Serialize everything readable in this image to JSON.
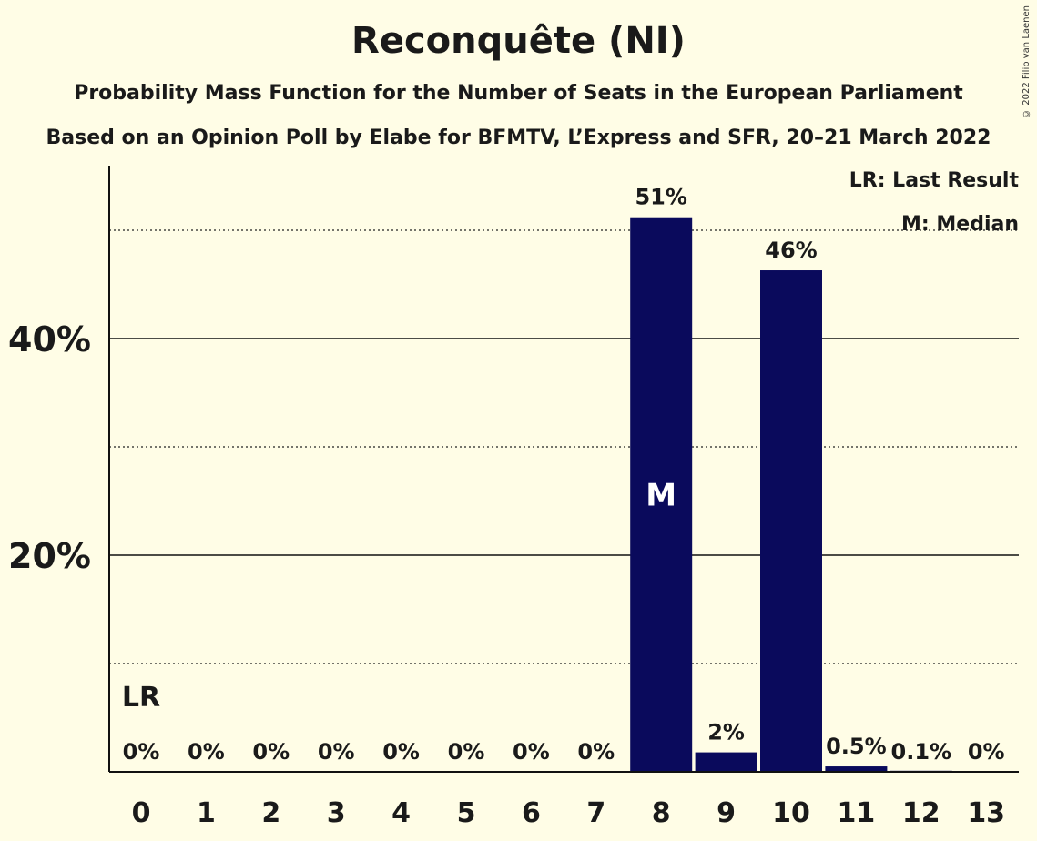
{
  "header": {
    "title": "Reconquête (NI)",
    "subtitle": "Probability Mass Function for the Number of Seats in the European Parliament",
    "source_line": "Based on an Opinion Poll by Elabe for BFMTV, L’Express and SFR, 20–21 March 2022",
    "copyright": "© 2022 Filip van Laenen"
  },
  "legend": {
    "last_result": "LR: Last Result",
    "median": "M: Median"
  },
  "chart_data": {
    "type": "bar",
    "title": "Reconquête (NI)",
    "categories": [
      "0",
      "1",
      "2",
      "3",
      "4",
      "5",
      "6",
      "7",
      "8",
      "9",
      "10",
      "11",
      "12",
      "13"
    ],
    "values": [
      0,
      0,
      0,
      0,
      0,
      0,
      0,
      0,
      51.2,
      1.8,
      46.3,
      0.5,
      0.1,
      0
    ],
    "data_labels": [
      "0%",
      "0%",
      "0%",
      "0%",
      "0%",
      "0%",
      "0%",
      "0%",
      "51%",
      "2%",
      "46%",
      "0.5%",
      "0.1%",
      "0%"
    ],
    "ylim": [
      0,
      55
    ],
    "yticks": [
      20,
      40
    ],
    "ytick_labels": [
      "20%",
      "40%"
    ],
    "minor_gridlines": [
      10,
      30,
      50
    ],
    "grid": true,
    "bar_color": "#0a0a5c",
    "background_color": "#fffde6",
    "last_result": {
      "category": "0",
      "label": "LR"
    },
    "median": {
      "category": "8",
      "label": "M"
    },
    "legend_position": "top-right"
  }
}
